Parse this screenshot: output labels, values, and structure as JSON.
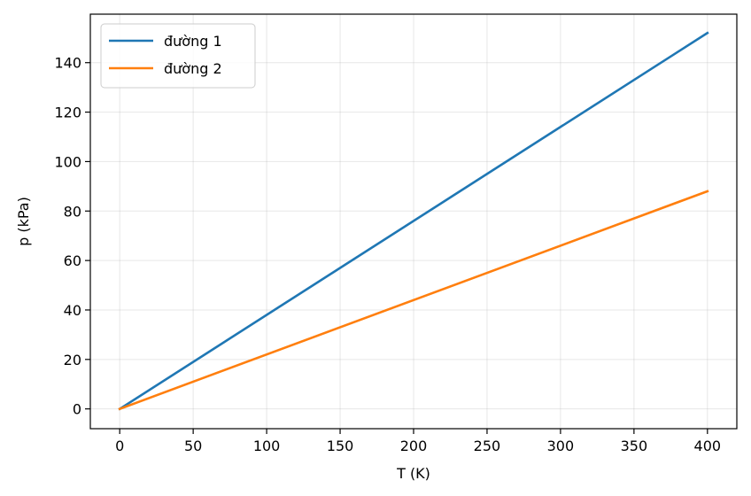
{
  "chart_data": {
    "type": "line",
    "title": "",
    "xlabel": "T (K)",
    "ylabel": "p (kPa)",
    "xlim": [
      -20,
      420
    ],
    "ylim": [
      -8,
      159.6
    ],
    "xticks": [
      0,
      50,
      100,
      150,
      200,
      250,
      300,
      350,
      400
    ],
    "yticks": [
      0,
      20,
      40,
      60,
      80,
      100,
      120,
      140
    ],
    "grid": true,
    "legend_position": "top-left",
    "series": [
      {
        "name": "đường 1",
        "color": "#1f77b4",
        "x": [
          0,
          400
        ],
        "y": [
          0,
          152
        ]
      },
      {
        "name": "đường 2",
        "color": "#ff7f0e",
        "x": [
          0,
          400
        ],
        "y": [
          0,
          88
        ]
      }
    ]
  }
}
